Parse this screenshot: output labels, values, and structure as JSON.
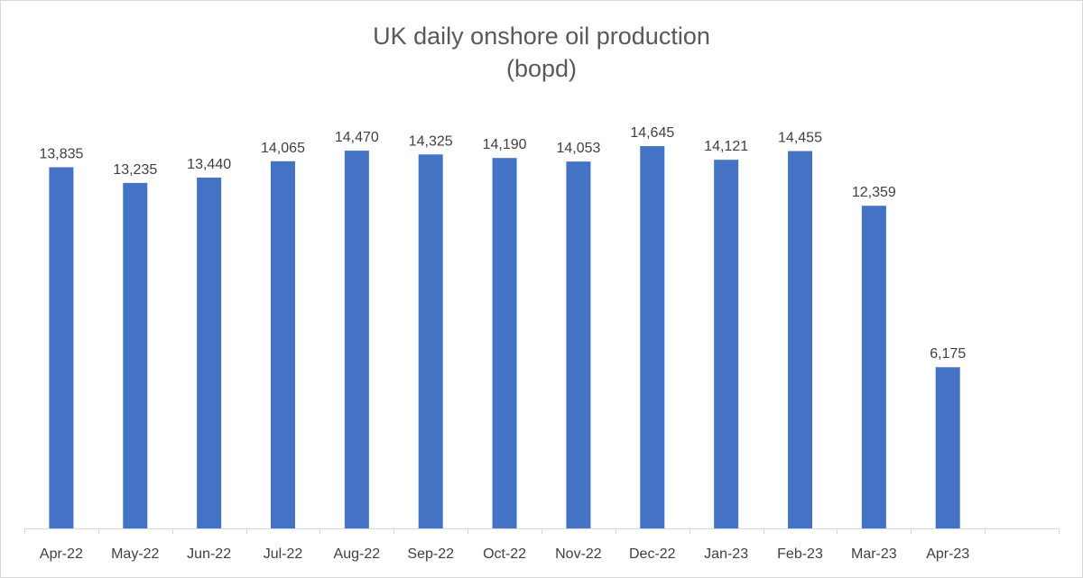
{
  "chart_data": {
    "type": "bar",
    "title_line1": "UK daily onshore oil production",
    "title_line2": "(bopd)",
    "xlabel": "",
    "ylabel": "",
    "ylim": [
      0,
      20000
    ],
    "grid": false,
    "categories": [
      "Apr-22",
      "May-22",
      "Jun-22",
      "Jul-22",
      "Aug-22",
      "Sep-22",
      "Oct-22",
      "Nov-22",
      "Dec-22",
      "Jan-23",
      "Feb-23",
      "Mar-23",
      "Apr-23"
    ],
    "values": [
      13835,
      13235,
      13440,
      14065,
      14470,
      14325,
      14190,
      14053,
      14645,
      14121,
      14455,
      12359,
      6175
    ],
    "data_labels": [
      "13,835",
      "13,235",
      "13,440",
      "14,065",
      "14,470",
      "14,325",
      "14,190",
      "14,053",
      "14,645",
      "14,121",
      "14,455",
      "12,359",
      "6,175"
    ],
    "bar_color": "#4472c4",
    "empty_trailing_slots": 1
  }
}
